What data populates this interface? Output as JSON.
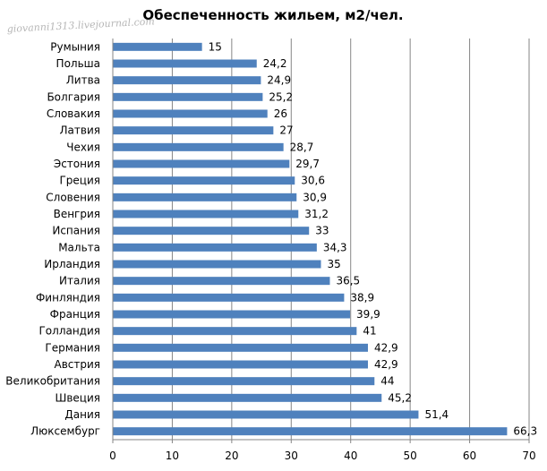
{
  "watermark": "giovanni1313.livejournal.com",
  "chart_data": {
    "type": "bar",
    "orientation": "horizontal",
    "title": "Обеспеченность жильем, м2/чел.",
    "categories": [
      "Румыния",
      "Польша",
      "Литва",
      "Болгария",
      "Словакия",
      "Латвия",
      "Чехия",
      "Эстония",
      "Греция",
      "Словения",
      "Венгрия",
      "Испания",
      "Мальта",
      "Ирландия",
      "Италия",
      "Финляндия",
      "Франция",
      "Голландия",
      "Германия",
      "Австрия",
      "Великобритания",
      "Швеция",
      "Дания",
      "Люксембург"
    ],
    "values": [
      15,
      24.2,
      24.9,
      25.2,
      26,
      27,
      28.7,
      29.7,
      30.6,
      30.9,
      31.2,
      33,
      34.3,
      35,
      36.5,
      38.9,
      39.9,
      41,
      42.9,
      42.9,
      44,
      45.2,
      51.4,
      66.3
    ],
    "value_labels": [
      "15",
      "24,2",
      "24,9",
      "25,2",
      "26",
      "27",
      "28,7",
      "29,7",
      "30,6",
      "30,9",
      "31,2",
      "33",
      "34,3",
      "35",
      "36,5",
      "38,9",
      "39,9",
      "41",
      "42,9",
      "42,9",
      "44",
      "45,2",
      "51,4",
      "66,3"
    ],
    "xlim": [
      0,
      70
    ],
    "xticks": [
      0,
      10,
      20,
      30,
      40,
      50,
      60,
      70
    ],
    "xtick_labels": [
      "0",
      "10",
      "20",
      "30",
      "40",
      "50",
      "60",
      "70"
    ],
    "grid": "vertical",
    "legend": "none",
    "bar_color": "#4f81bd",
    "grid_color": "#868686",
    "xlabel": "",
    "ylabel": ""
  }
}
